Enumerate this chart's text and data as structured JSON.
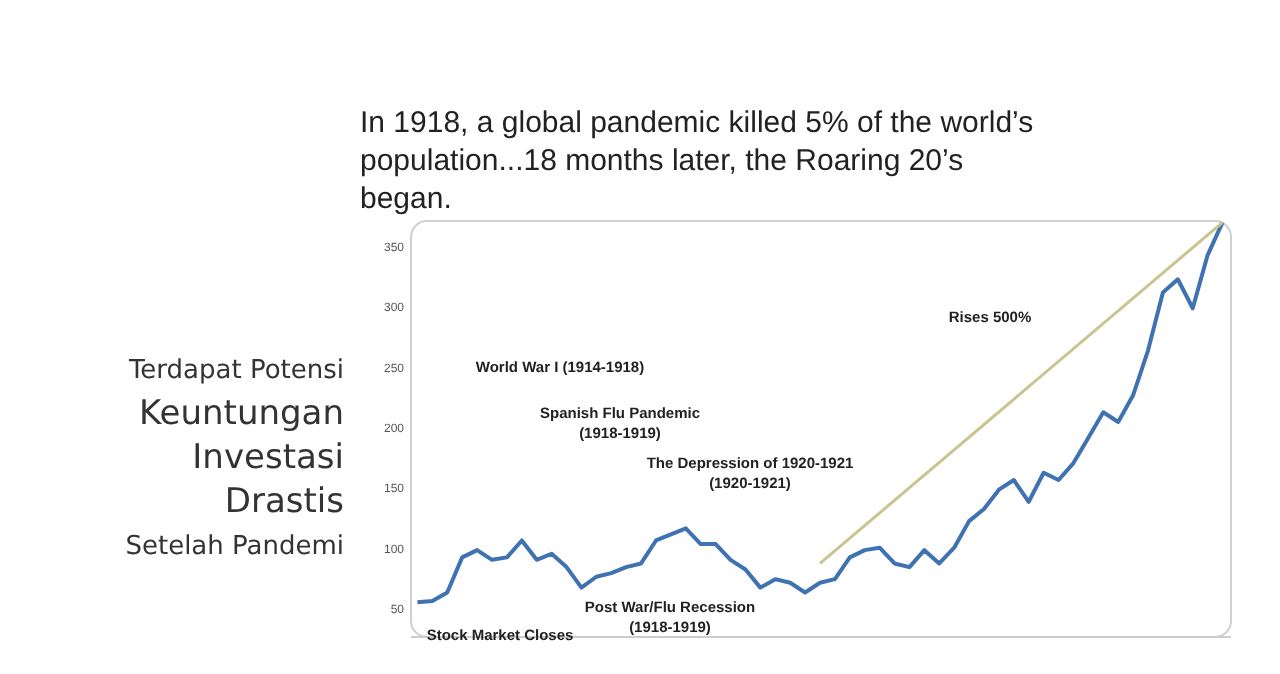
{
  "chart_data": {
    "type": "line",
    "title": "In 1918, a global pandemic killed 5% of the world’s population...18 months later, the Roaring 20’s began.",
    "subtitle": "Terdapat Potensi\nKeuntungan\nInvestasi\nDrastis\nSetelah Pandemi",
    "categories": [
      null,
      null,
      null,
      null,
      null,
      null,
      null,
      null,
      null,
      null,
      null,
      null,
      null,
      null,
      null,
      null,
      null,
      null,
      null,
      null,
      null,
      null,
      null,
      null,
      null,
      null,
      null,
      null,
      null,
      null,
      null,
      null,
      null,
      null,
      null,
      null,
      null,
      null,
      null,
      null,
      null,
      null,
      null,
      null,
      null,
      null,
      null,
      null,
      null,
      null,
      null,
      null,
      null,
      null,
      null
    ],
    "series": [
      {
        "color": "#3f72b0",
        "values": [
          56,
          57,
          64,
          93,
          99,
          91,
          93,
          107,
          91,
          96,
          85,
          68,
          77,
          80,
          85,
          88,
          107,
          112,
          117,
          104,
          104,
          91,
          83,
          68,
          75,
          72,
          64,
          72,
          75,
          93,
          99,
          101,
          88,
          85,
          99,
          88,
          101,
          123,
          133,
          149,
          157,
          139,
          163,
          157,
          171,
          192,
          213,
          205,
          227,
          264,
          312,
          323,
          299,
          343,
          370
        ]
      },
      {
        "color": "#c8c590",
        "values": [
          null,
          null,
          null,
          null,
          null,
          null,
          null,
          null,
          null,
          null,
          null,
          null,
          null,
          null,
          null,
          null,
          null,
          null,
          null,
          null,
          null,
          null,
          null,
          null,
          null,
          null,
          null,
          88,
          null,
          null,
          null,
          null,
          null,
          null,
          null,
          null,
          null,
          null,
          null,
          null,
          null,
          null,
          null,
          null,
          null,
          null,
          null,
          null,
          null,
          null,
          null,
          null,
          null,
          null,
          370
        ]
      }
    ],
    "ylim": [
      28,
      372
    ],
    "yticks": [
      50,
      100,
      150,
      200,
      250,
      300,
      350
    ],
    "grid": false,
    "tick_labels": "y",
    "annotations": [
      "World War I (1914-1918)",
      "Spanish Flu Pandemic\n(1918-1919)",
      "The Depression of 1920-1921\n(1920-1921)",
      "Rises 500%",
      "Post War/Flu Recession\n(1918-1919)",
      "Stock Market Closes"
    ]
  }
}
